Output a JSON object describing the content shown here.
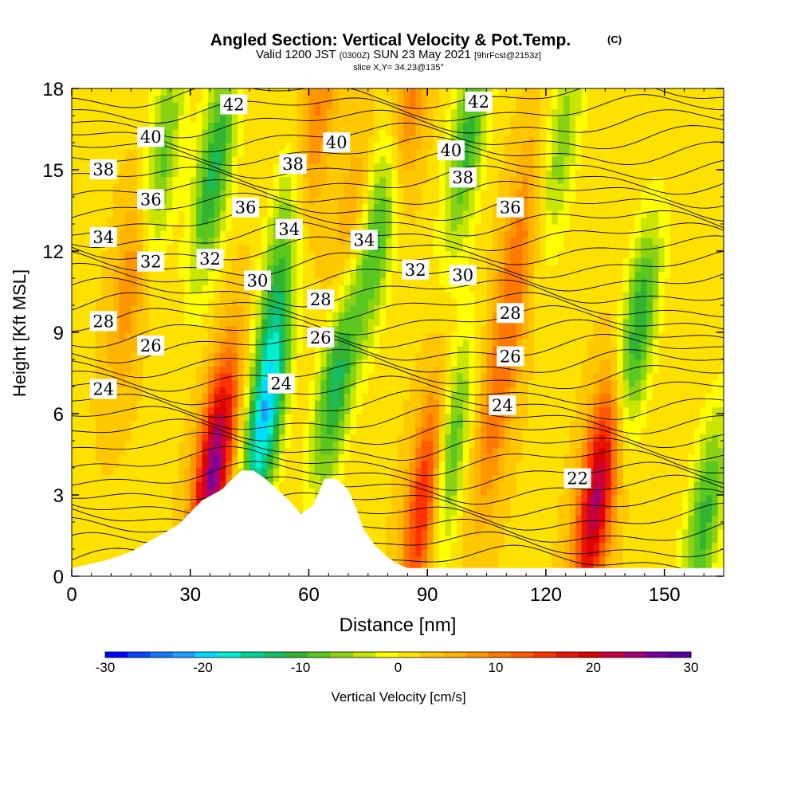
{
  "header": {
    "title_main": "Angled Section: Vertical Velocity & Pot.Temp.",
    "title_mark": "(C)",
    "subtitle_a": "Valid 1200 JST",
    "subtitle_b": "(0300Z)",
    "subtitle_c": "SUN 23 May 2021",
    "subtitle_d": "[9hrFcst@2153z]",
    "slice": "slice X,Y= 34,23@135°"
  },
  "chart_data": {
    "type": "heatmap",
    "title": "Angled Section: Vertical Velocity & Pot.Temp.",
    "xlabel": "Distance [nm]",
    "ylabel": "Height [Kft MSL]",
    "xlim": [
      0,
      165
    ],
    "ylim": [
      0,
      18
    ],
    "x_ticks": [
      "0",
      "30",
      "60",
      "90",
      "120",
      "150"
    ],
    "y_ticks": [
      "0",
      "3",
      "6",
      "9",
      "12",
      "15",
      "18"
    ],
    "colorbar": {
      "label": "Vertical Velocity [cm/s]",
      "range": [
        -30,
        30
      ],
      "tick_labels": [
        "-30",
        "-20",
        "-10",
        "0",
        "10",
        "20",
        "30"
      ],
      "colors": [
        "#0000ff",
        "#0a46ff",
        "#1478ff",
        "#1ea0ff",
        "#00dcff",
        "#00f0d2",
        "#00d296",
        "#14be64",
        "#32b432",
        "#5ac81e",
        "#8cd214",
        "#c8e600",
        "#ffff00",
        "#ffe100",
        "#ffc800",
        "#ffb400",
        "#ff9600",
        "#ff7800",
        "#ff5a00",
        "#ff3200",
        "#eb1400",
        "#dc0000",
        "#c8003c",
        "#a00078",
        "#7800a0",
        "#5a00a0"
      ]
    },
    "updrafts_cm_s": [
      {
        "x": 16,
        "y": 11.5,
        "w": 9
      },
      {
        "x": 36,
        "y": 4.0,
        "w": 24
      },
      {
        "x": 62,
        "y": 17,
        "w": 8
      },
      {
        "x": 70,
        "y": 12,
        "w": 7
      },
      {
        "x": 85,
        "y": 17.5,
        "w": 10
      },
      {
        "x": 90,
        "y": 3.0,
        "w": 20
      },
      {
        "x": 113,
        "y": 12,
        "w": 8
      },
      {
        "x": 133,
        "y": 3.0,
        "w": 22
      },
      {
        "x": 107,
        "y": 6,
        "w": 8
      }
    ],
    "downdrafts_cm_s": [
      {
        "x": 22,
        "y": 15,
        "w": -12
      },
      {
        "x": 36,
        "y": 15,
        "w": -14
      },
      {
        "x": 49,
        "y": 6.0,
        "w": -22
      },
      {
        "x": 53,
        "y": 12,
        "w": -9
      },
      {
        "x": 67,
        "y": 7.5,
        "w": -16
      },
      {
        "x": 78,
        "y": 13,
        "w": -13
      },
      {
        "x": 95,
        "y": 4.5,
        "w": -16
      },
      {
        "x": 100,
        "y": 16,
        "w": -12
      },
      {
        "x": 124,
        "y": 16,
        "w": -8
      },
      {
        "x": 143,
        "y": 9,
        "w": -14
      },
      {
        "x": 160,
        "y": 2,
        "w": -12
      }
    ],
    "terrain_kft": [
      {
        "x": 0,
        "z": 0.3
      },
      {
        "x": 9,
        "z": 0.6
      },
      {
        "x": 15,
        "z": 0.9
      },
      {
        "x": 21,
        "z": 1.4
      },
      {
        "x": 27,
        "z": 1.9
      },
      {
        "x": 33,
        "z": 2.8
      },
      {
        "x": 38,
        "z": 3.2
      },
      {
        "x": 40,
        "z": 3.5
      },
      {
        "x": 43,
        "z": 3.9
      },
      {
        "x": 46,
        "z": 3.9
      },
      {
        "x": 49,
        "z": 3.6
      },
      {
        "x": 52,
        "z": 3.2
      },
      {
        "x": 55,
        "z": 2.8
      },
      {
        "x": 58,
        "z": 2.3
      },
      {
        "x": 61,
        "z": 2.6
      },
      {
        "x": 64,
        "z": 3.6
      },
      {
        "x": 67,
        "z": 3.6
      },
      {
        "x": 70,
        "z": 3.2
      },
      {
        "x": 72,
        "z": 2.5
      },
      {
        "x": 74,
        "z": 1.7
      },
      {
        "x": 77,
        "z": 1.1
      },
      {
        "x": 80,
        "z": 0.7
      },
      {
        "x": 82,
        "z": 0.5
      },
      {
        "x": 85,
        "z": 0.3
      },
      {
        "x": 165,
        "z": 0.3
      }
    ],
    "theta_contour_labels": [
      {
        "text": "42",
        "x": 41,
        "y": 17.4
      },
      {
        "text": "42",
        "x": 103,
        "y": 17.5
      },
      {
        "text": "40",
        "x": 20,
        "y": 16.2
      },
      {
        "text": "40",
        "x": 67,
        "y": 16.0
      },
      {
        "text": "40",
        "x": 96,
        "y": 15.7
      },
      {
        "text": "38",
        "x": 8,
        "y": 15.0
      },
      {
        "text": "38",
        "x": 56,
        "y": 15.2
      },
      {
        "text": "38",
        "x": 99,
        "y": 14.7
      },
      {
        "text": "36",
        "x": 20,
        "y": 13.9
      },
      {
        "text": "36",
        "x": 44,
        "y": 13.6
      },
      {
        "text": "36",
        "x": 111,
        "y": 13.6
      },
      {
        "text": "34",
        "x": 8,
        "y": 12.5
      },
      {
        "text": "34",
        "x": 55,
        "y": 12.8
      },
      {
        "text": "34",
        "x": 74,
        "y": 12.4
      },
      {
        "text": "32",
        "x": 20,
        "y": 11.6
      },
      {
        "text": "32",
        "x": 35,
        "y": 11.7
      },
      {
        "text": "32",
        "x": 87,
        "y": 11.3
      },
      {
        "text": "30",
        "x": 47,
        "y": 10.9
      },
      {
        "text": "30",
        "x": 99,
        "y": 11.1
      },
      {
        "text": "28",
        "x": 8,
        "y": 9.4
      },
      {
        "text": "28",
        "x": 63,
        "y": 10.2
      },
      {
        "text": "28",
        "x": 111,
        "y": 9.7
      },
      {
        "text": "26",
        "x": 20,
        "y": 8.5
      },
      {
        "text": "26",
        "x": 63,
        "y": 8.8
      },
      {
        "text": "26",
        "x": 111,
        "y": 8.1
      },
      {
        "text": "24",
        "x": 8,
        "y": 6.9
      },
      {
        "text": "24",
        "x": 53,
        "y": 7.1
      },
      {
        "text": "24",
        "x": 109,
        "y": 6.3
      },
      {
        "text": "22",
        "x": 128,
        "y": 3.6
      }
    ]
  }
}
